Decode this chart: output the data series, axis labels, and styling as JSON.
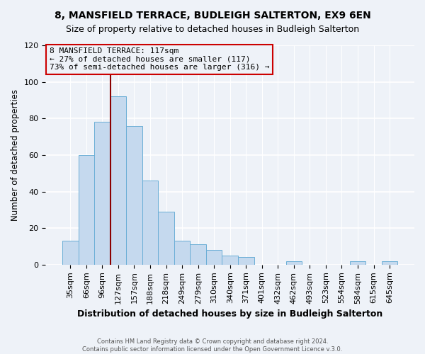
{
  "title": "8, MANSFIELD TERRACE, BUDLEIGH SALTERTON, EX9 6EN",
  "subtitle": "Size of property relative to detached houses in Budleigh Salterton",
  "xlabel": "Distribution of detached houses by size in Budleigh Salterton",
  "ylabel": "Number of detached properties",
  "bar_labels": [
    "35sqm",
    "66sqm",
    "96sqm",
    "127sqm",
    "157sqm",
    "188sqm",
    "218sqm",
    "249sqm",
    "279sqm",
    "310sqm",
    "340sqm",
    "371sqm",
    "401sqm",
    "432sqm",
    "462sqm",
    "493sqm",
    "523sqm",
    "554sqm",
    "584sqm",
    "615sqm",
    "645sqm"
  ],
  "bar_values": [
    13,
    60,
    78,
    92,
    76,
    46,
    29,
    13,
    11,
    8,
    5,
    4,
    0,
    0,
    2,
    0,
    0,
    0,
    2,
    0,
    2
  ],
  "bar_color": "#c5d9ee",
  "bar_edge_color": "#6aaed6",
  "vline_x_index": 3,
  "vline_color": "#8b0000",
  "annotation_title": "8 MANSFIELD TERRACE: 117sqm",
  "annotation_line1": "← 27% of detached houses are smaller (117)",
  "annotation_line2": "73% of semi-detached houses are larger (316) →",
  "annotation_box_edge": "#cc0000",
  "ylim": [
    0,
    120
  ],
  "yticks": [
    0,
    20,
    40,
    60,
    80,
    100,
    120
  ],
  "footer1": "Contains HM Land Registry data © Crown copyright and database right 2024.",
  "footer2": "Contains public sector information licensed under the Open Government Licence v.3.0.",
  "background_color": "#eef2f8",
  "plot_bg_color": "#eef2f8",
  "grid_color": "#ffffff",
  "title_fontsize": 10,
  "subtitle_fontsize": 9,
  "xlabel_fontsize": 9,
  "ylabel_fontsize": 8.5,
  "tick_fontsize": 8,
  "annotation_fontsize": 8
}
